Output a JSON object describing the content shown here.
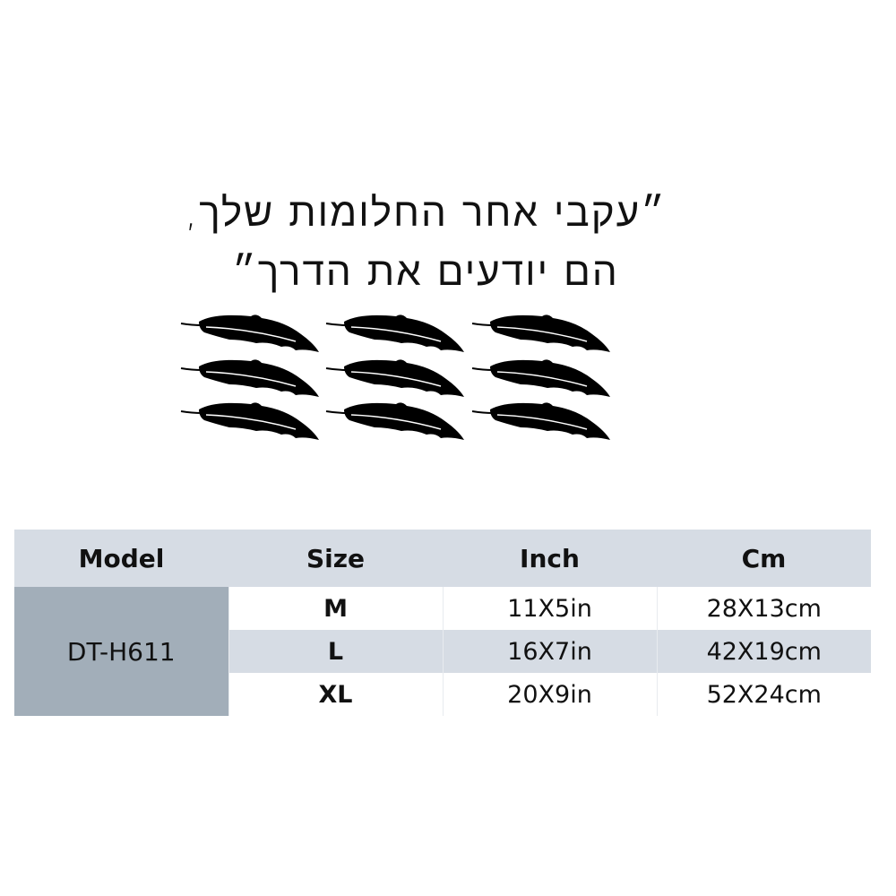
{
  "quote": {
    "line1": "״עקבי אחר החלומות שלך,",
    "line2": "הם יודעים את הדרך״"
  },
  "decoration": {
    "icon": "feather-icon",
    "count": 9,
    "color": "#000000"
  },
  "table": {
    "headers": [
      "Model",
      "Size",
      "Inch",
      "Cm"
    ],
    "model": "DT-H611",
    "rows": [
      {
        "size": "M",
        "inch": "11X5in",
        "cm": "28X13cm"
      },
      {
        "size": "L",
        "inch": "16X7in",
        "cm": "42X19cm"
      },
      {
        "size": "XL",
        "inch": "20X9in",
        "cm": "52X24cm"
      }
    ],
    "colors": {
      "header_bg": "#d6dce4",
      "model_bg": "#a2aeb9",
      "alt_row_bg": "#d6dce4"
    }
  }
}
